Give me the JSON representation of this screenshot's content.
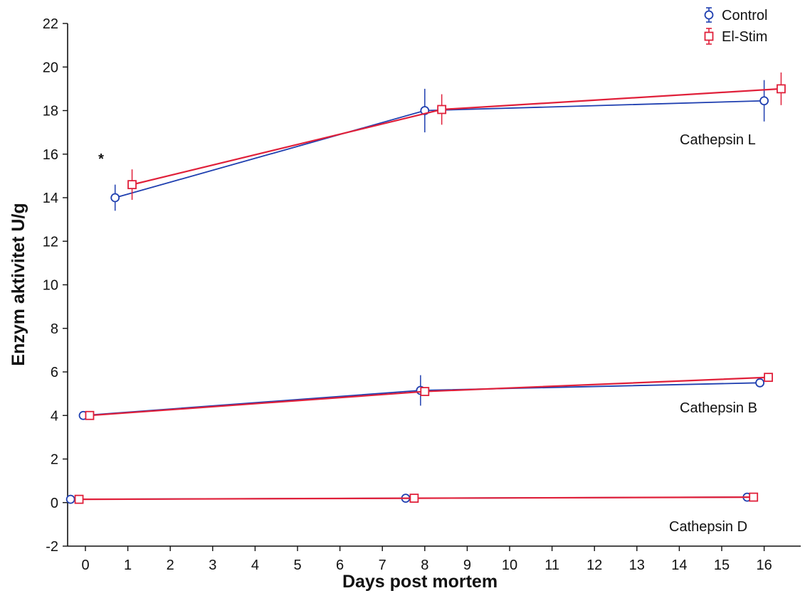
{
  "chart_data": {
    "type": "line",
    "title": "",
    "xlabel": "Days post mortem",
    "ylabel": "Enzym aktivitet U/g",
    "x_ticks": [
      "0",
      "1",
      "2",
      "3",
      "4",
      "5",
      "6",
      "7",
      "8",
      "9",
      "10",
      "11",
      "12",
      "13",
      "14",
      "15",
      "16"
    ],
    "y_ticks": [
      "-2",
      "0",
      "2",
      "4",
      "6",
      "8",
      "10",
      "12",
      "14",
      "16",
      "18",
      "20",
      "22"
    ],
    "ylim": [
      -2,
      22
    ],
    "grid": false,
    "legend_position": "top-right",
    "legend": [
      "Control",
      "El-Stim"
    ],
    "colors": {
      "Control": "#1f3fb0",
      "El-Stim": "#e0203a"
    },
    "marker": {
      "Control": "circle",
      "El-Stim": "square"
    },
    "groups": [
      {
        "label": "Cathepsin L",
        "series": [
          {
            "name": "Control",
            "x": [
              0,
              8,
              16
            ],
            "y": [
              14.0,
              18.0,
              18.45
            ],
            "err": [
              0.6,
              1.0,
              0.95
            ]
          },
          {
            "name": "El-Stim",
            "x": [
              0,
              8,
              16
            ],
            "y": [
              14.6,
              18.05,
              19.0
            ],
            "err": [
              0.7,
              0.7,
              0.75
            ]
          }
        ]
      },
      {
        "label": "Cathepsin B",
        "series": [
          {
            "name": "Control",
            "x": [
              0,
              8,
              16
            ],
            "y": [
              4.0,
              5.15,
              5.5
            ],
            "err": [
              0.1,
              0.7,
              0.1
            ]
          },
          {
            "name": "El-Stim",
            "x": [
              0,
              8,
              16
            ],
            "y": [
              4.0,
              5.1,
              5.75
            ],
            "err": [
              0.15,
              0.2,
              0.2
            ]
          }
        ]
      },
      {
        "label": "Cathepsin D",
        "series": [
          {
            "name": "Control",
            "x": [
              0,
              8,
              16
            ],
            "y": [
              0.15,
              0.2,
              0.25
            ],
            "err": [
              0.05,
              0.05,
              0.05
            ]
          },
          {
            "name": "El-Stim",
            "x": [
              0,
              8,
              16
            ],
            "y": [
              0.15,
              0.2,
              0.25
            ],
            "err": [
              0.05,
              0.05,
              0.05
            ]
          }
        ]
      }
    ],
    "annotations": [
      {
        "text": "*",
        "group": "Cathepsin L",
        "x": 0
      }
    ]
  }
}
